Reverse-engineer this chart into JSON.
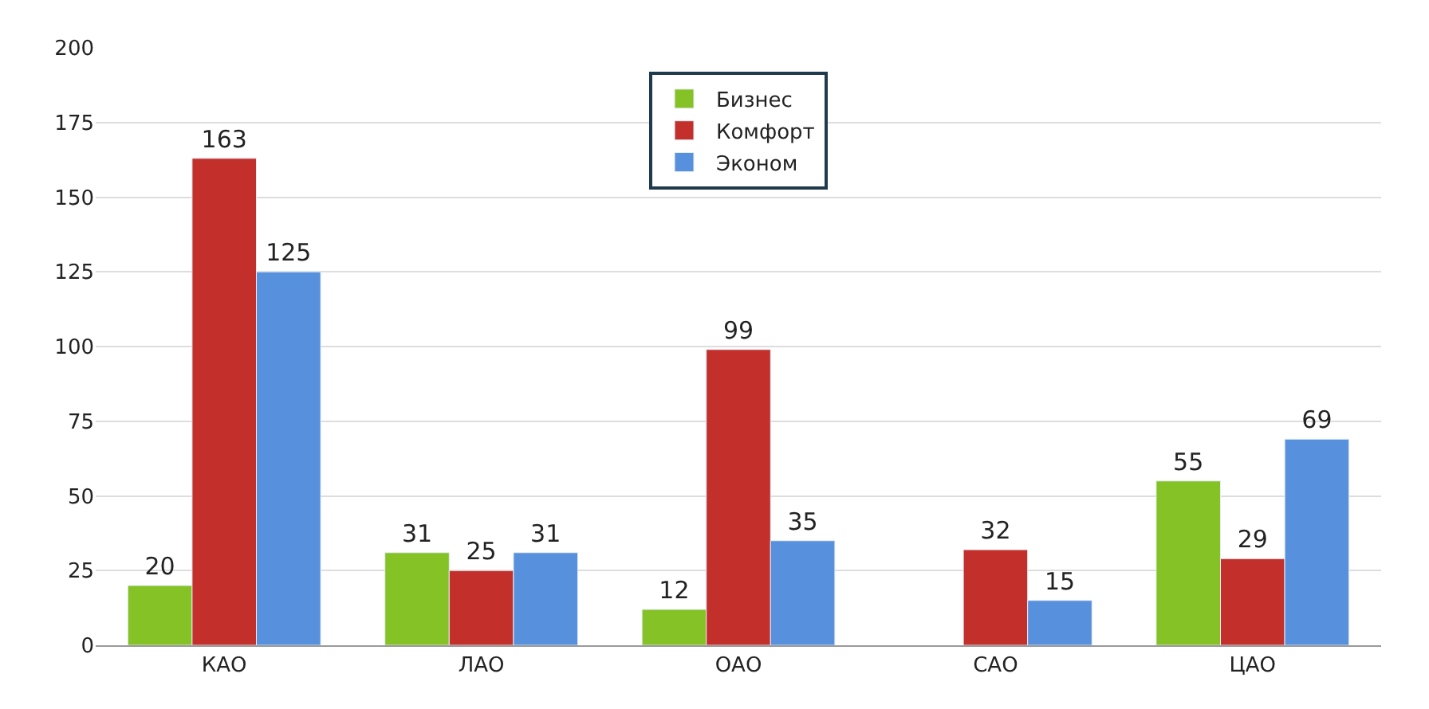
{
  "chart_data": {
    "type": "bar",
    "categories": [
      "КАО",
      "ЛАО",
      "ОАО",
      "САО",
      "ЦАО"
    ],
    "series": [
      {
        "name": "Бизнес",
        "color": "#84c225",
        "values": [
          20,
          31,
          12,
          null,
          55
        ]
      },
      {
        "name": "Комфорт",
        "color": "#c3302c",
        "values": [
          163,
          25,
          99,
          32,
          29
        ]
      },
      {
        "name": "Эконом",
        "color": "#5790dc",
        "values": [
          125,
          31,
          35,
          15,
          69
        ]
      }
    ],
    "ylim": [
      0,
      200
    ],
    "yticks": [
      0,
      25,
      50,
      75,
      100,
      125,
      150,
      175,
      200
    ],
    "grid": "y",
    "legend": "top",
    "data_labels": true
  }
}
